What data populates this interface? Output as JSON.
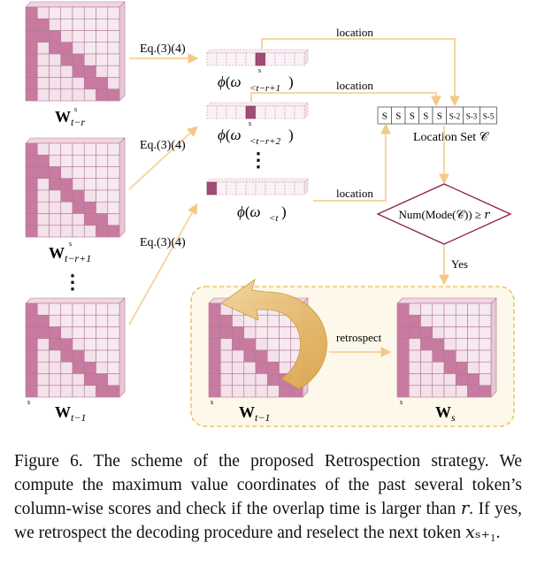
{
  "figure": {
    "matrix_labels": {
      "w_t_minus_r": {
        "base": "W",
        "sub": "t−r",
        "sup": "s"
      },
      "w_t_minus_r_plus_1": {
        "base": "W",
        "sub": "t−r+1",
        "sup": "s"
      },
      "w_t_minus_1_left": {
        "base": "W",
        "sub": "t−1",
        "mark": "s"
      },
      "w_t_minus_1_box": {
        "base": "W",
        "sub": "t−1",
        "mark": "s"
      },
      "w_s": {
        "base": "W",
        "sub": "s",
        "mark": "s"
      }
    },
    "left_ellipsis": "⋮",
    "middle_ellipsis": "⋮",
    "eq_labels": [
      "Eq.(3)(4)",
      "Eq.(3)(4)",
      "Eq.(3)(4)"
    ],
    "vectors": [
      {
        "label_fn": "ϕ",
        "label_arg": "ω",
        "label_sub": "<t−r+1",
        "mark": "s"
      },
      {
        "label_fn": "ϕ",
        "label_arg": "ω",
        "label_sub": "<t−r+2",
        "mark": "s"
      },
      {
        "label_fn": "ϕ",
        "label_arg": "ω",
        "label_sub": "<t"
      }
    ],
    "location_labels": [
      "location",
      "location",
      "location"
    ],
    "location_set": {
      "cells": [
        "S",
        "S",
        "S",
        "S",
        "S",
        "S-2",
        "S-3",
        "S-5"
      ],
      "caption": "Location Set 𝒞"
    },
    "decision": {
      "text": "Num(Mode(𝒞)) ≥ 𝑟",
      "yes_label": "Yes"
    },
    "retrospect_label": "retrospect"
  },
  "colors": {
    "cell_light": "#f4e1ea",
    "cell_dark": "#c97aa1",
    "cell_marked": "#a04c76",
    "arrow": "#f6d7a3",
    "box_fill": "#fdf8ea",
    "box_border": "#e8b950",
    "diamond": "#8c1e45",
    "curve_arrow": "#e0b260"
  },
  "caption": {
    "text": "Figure 6. The scheme of the proposed Retrospection strategy. We compute the maximum value coordinates of the past several token’s column-wise scores and check if the overlap time is larger than 𝑟. If yes, we retrospect the decoding procedure and reselect the next token 𝑥ₛ₊₁."
  }
}
